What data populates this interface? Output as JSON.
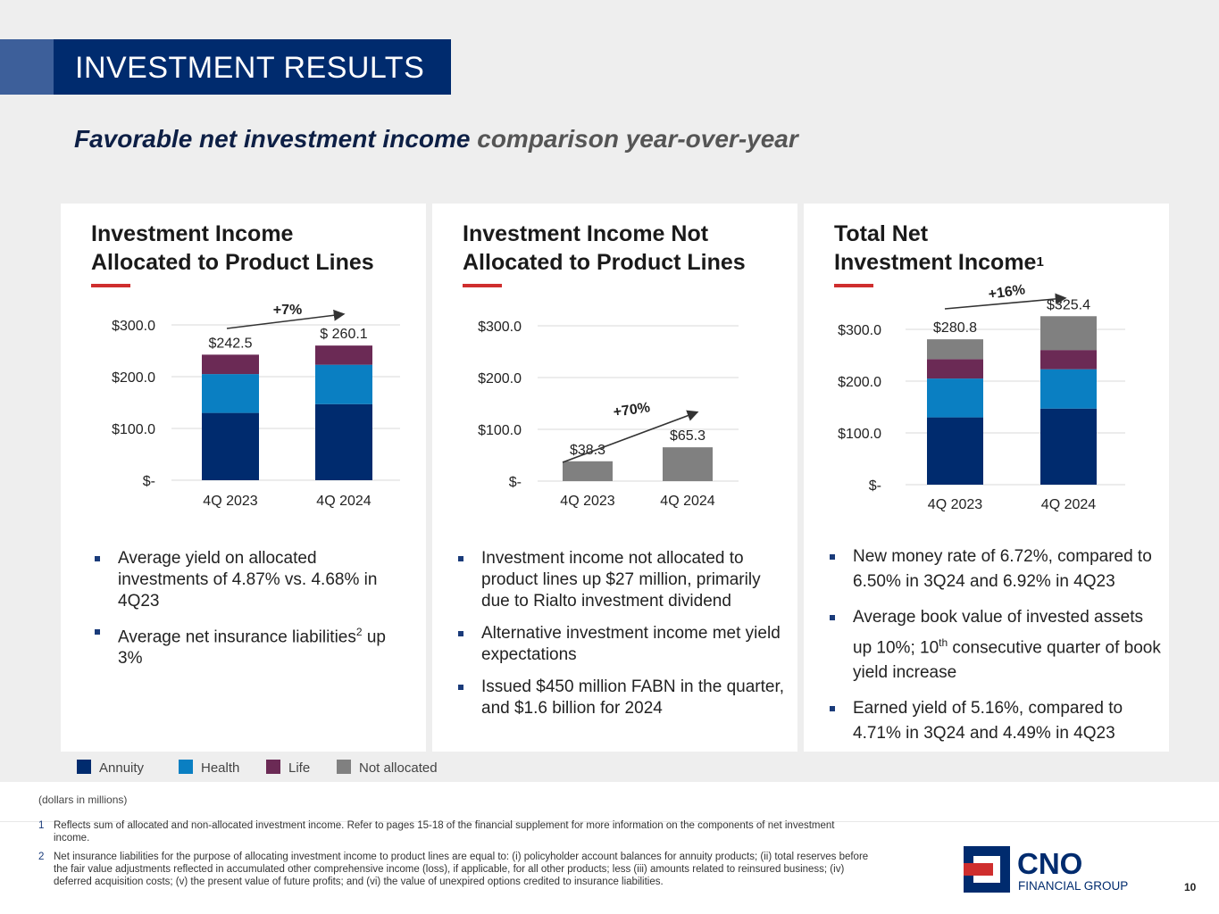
{
  "header": {
    "title": "INVESTMENT RESULTS",
    "subtitle_main": "Favorable net investment income ",
    "subtitle_accent": "comparison year-over-year"
  },
  "panels": [
    {
      "title_line1": "Investment Income",
      "title_line2": "Allocated to Product Lines",
      "bullets": [
        "Average yield on allocated investments of 4.87% vs. 4.68% in 4Q23",
        "Average net insurance liabilities"
      ],
      "bullet2_sup": "2",
      "bullet2_after": " up 3%"
    },
    {
      "title_line1": "Investment Income Not",
      "title_line2": "Allocated to Product Lines",
      "bullets": [
        "Investment income not allocated to product lines up $27 million, primarily due to Rialto investment dividend",
        "Alternative investment income met yield expectations",
        "Issued $450 million FABN in the quarter, and $1.6 billion for 2024"
      ]
    },
    {
      "title_line1": "Total Net",
      "title_line2": "Investment Income",
      "title_sup": "1",
      "bullets": [
        "New money rate of 6.72%, compared to 6.50% in 3Q24 and 6.92% in 4Q23",
        "Average book value of invested assets up 10%; 10",
        "Earned yield of 5.16%, compared to 4.71% in 3Q24 and 4.49% in 4Q23"
      ],
      "bullet2_sup": "th",
      "bullet2_after": " consecutive quarter of book yield increase"
    }
  ],
  "chart_data": [
    {
      "type": "bar",
      "stacked": true,
      "title": "Investment Income Allocated to Product Lines",
      "categories": [
        "4Q 2023",
        "4Q 2024"
      ],
      "series": [
        {
          "name": "Annuity",
          "values": [
            130,
            147
          ]
        },
        {
          "name": "Health",
          "values": [
            75,
            76
          ]
        },
        {
          "name": "Life",
          "values": [
            37.5,
            37.1
          ]
        }
      ],
      "total_labels": [
        "$242.5",
        "$ 260.1"
      ],
      "y_ticks": [
        0,
        100,
        200,
        300
      ],
      "y_tick_labels": [
        "$-",
        "$100.0",
        "$200.0",
        "$300.0"
      ],
      "ylim": [
        0,
        300
      ],
      "change_label": "+7%"
    },
    {
      "type": "bar",
      "stacked": true,
      "title": "Investment Income Not Allocated to Product Lines",
      "categories": [
        "4Q 2023",
        "4Q 2024"
      ],
      "series": [
        {
          "name": "Not allocated",
          "values": [
            38.3,
            65.3
          ]
        }
      ],
      "total_labels": [
        "$38.3",
        "$65.3"
      ],
      "y_ticks": [
        0,
        100,
        200,
        300
      ],
      "y_tick_labels": [
        "$-",
        "$100.0",
        "$200.0",
        "$300.0"
      ],
      "ylim": [
        0,
        300
      ],
      "change_label": "+70%"
    },
    {
      "type": "bar",
      "stacked": true,
      "title": "Total Net Investment Income",
      "categories": [
        "4Q 2023",
        "4Q 2024"
      ],
      "series": [
        {
          "name": "Annuity",
          "values": [
            130,
            147
          ]
        },
        {
          "name": "Health",
          "values": [
            75,
            76
          ]
        },
        {
          "name": "Life",
          "values": [
            37.5,
            37.1
          ]
        },
        {
          "name": "Not allocated",
          "values": [
            38.3,
            65.3
          ]
        }
      ],
      "total_labels": [
        "$280.8",
        "$325.4"
      ],
      "y_ticks": [
        0,
        100,
        200,
        300
      ],
      "y_tick_labels": [
        "$-",
        "$100.0",
        "$200.0",
        "$300.0"
      ],
      "ylim": [
        0,
        300
      ],
      "change_label": "+16%"
    }
  ],
  "legend": [
    {
      "label": "Annuity",
      "color": "#002b6e"
    },
    {
      "label": "Health",
      "color": "#0a7fc2"
    },
    {
      "label": "Life",
      "color": "#6b2a55"
    },
    {
      "label": "Not allocated",
      "color": "#808080"
    }
  ],
  "footer": {
    "dollars_note": "(dollars in millions)",
    "footnotes": [
      {
        "num": "1",
        "text": "Reflects sum of allocated and non-allocated investment income. Refer to pages 15-18 of the financial supplement for more information on the components of net investment income."
      },
      {
        "num": "2",
        "text": "Net insurance liabilities for the purpose of allocating investment income to product lines are equal to: (i) policyholder account balances for annuity products; (ii) total reserves before the fair value adjustments reflected in accumulated other comprehensive income (loss), if applicable, for all other products; less (iii) amounts related to reinsured business; (iv) deferred acquisition costs; (v) the present value of future profits; and (vi) the value of unexpired options credited to insurance liabilities."
      }
    ],
    "logo_main": "CNO",
    "logo_sub": "FINANCIAL GROUP",
    "page_number": "10"
  }
}
